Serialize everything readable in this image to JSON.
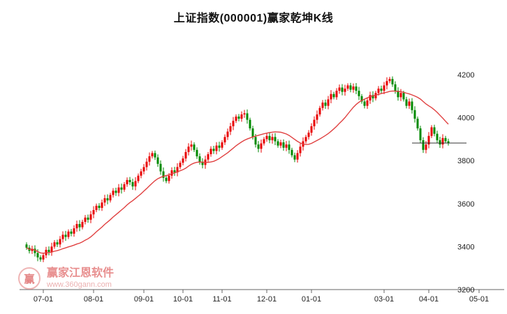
{
  "title": "上证指数(000001)赢家乾坤K线",
  "watermark": {
    "brand": "赢家江恩软件",
    "url": "www.360gann.com",
    "logo_text": "赢"
  },
  "chart_data": {
    "type": "candlestick",
    "title": "上证指数(000001)赢家乾坤K线",
    "symbol_name": "上证指数",
    "symbol_code": "000001",
    "x_tick_labels": [
      "07-01",
      "08-01",
      "09-01",
      "10-01",
      "11-01",
      "12-01",
      "01-01",
      "03-01",
      "04-01",
      "05-01"
    ],
    "x_tick_indices": [
      6,
      24,
      42,
      56,
      70,
      86,
      102,
      128,
      144,
      162
    ],
    "y_tick_values": [
      3200,
      3400,
      3600,
      3800,
      4000,
      4200
    ],
    "y_axis_side": "right",
    "y_range": [
      3200,
      4400
    ],
    "grid": "off",
    "ma_window": 20,
    "wick_extent": 10,
    "last_price_line": 3882,
    "closes": [
      3395,
      3380,
      3390,
      3370,
      3350,
      3340,
      3360,
      3385,
      3375,
      3400,
      3420,
      3410,
      3435,
      3455,
      3445,
      3470,
      3460,
      3485,
      3505,
      3490,
      3515,
      3535,
      3525,
      3550,
      3570,
      3590,
      3580,
      3605,
      3625,
      3615,
      3640,
      3660,
      3650,
      3675,
      3665,
      3690,
      3710,
      3700,
      3680,
      3705,
      3730,
      3750,
      3770,
      3795,
      3820,
      3835,
      3815,
      3785,
      3750,
      3720,
      3705,
      3730,
      3755,
      3745,
      3770,
      3790,
      3810,
      3840,
      3865,
      3875,
      3850,
      3820,
      3795,
      3780,
      3805,
      3830,
      3855,
      3845,
      3870,
      3860,
      3885,
      3910,
      3935,
      3960,
      3985,
      4005,
      3995,
      4015,
      4020,
      3990,
      3950,
      3910,
      3875,
      3855,
      3880,
      3900,
      3915,
      3895,
      3910,
      3890,
      3870,
      3885,
      3860,
      3875,
      3850,
      3825,
      3805,
      3835,
      3865,
      3890,
      3910,
      3930,
      3960,
      3990,
      4015,
      4045,
      4070,
      4055,
      4085,
      4110,
      4095,
      4125,
      4140,
      4120,
      4135,
      4150,
      4130,
      4145,
      4125,
      4100,
      4075,
      4055,
      4080,
      4105,
      4090,
      4115,
      4135,
      4125,
      4150,
      4170,
      4180,
      4155,
      4125,
      4095,
      4115,
      4085,
      4055,
      4075,
      4035,
      3995,
      3950,
      3895,
      3850,
      3875,
      3915,
      3955,
      3925,
      3895,
      3875,
      3905,
      3890,
      3882
    ],
    "colors": {
      "up": "#e80000",
      "down": "#008a00",
      "ma": "#e04040",
      "last_line": "#333333",
      "axis": "#666666",
      "tick_label": "#222222"
    }
  }
}
